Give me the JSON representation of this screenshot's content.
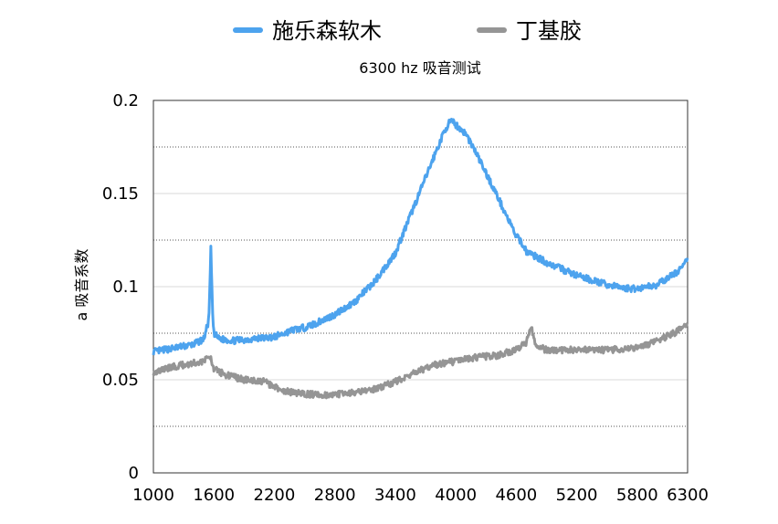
{
  "chart_data": {
    "type": "line",
    "title": "6300 hz 吸音测试",
    "xlabel": "",
    "ylabel": "a 吸音系数",
    "xlim": [
      1000,
      6300
    ],
    "ylim": [
      0,
      0.2
    ],
    "x_ticks": [
      "1000",
      "1600",
      "2200",
      "2800",
      "3400",
      "4000",
      "4600",
      "5200",
      "5800",
      "6300"
    ],
    "y_ticks": [
      "0",
      "0.05",
      "0.1",
      "0.15",
      "0.2"
    ],
    "grid": {
      "major_solid": [
        0.05,
        0.1,
        0.15
      ],
      "minor_dotted": [
        0.025,
        0.075,
        0.125,
        0.175
      ]
    },
    "legend_position": "top",
    "series": [
      {
        "name": "施乐森软木",
        "color": "#4da3ee",
        "x": [
          1000,
          1200,
          1400,
          1500,
          1550,
          1560,
          1570,
          1580,
          1590,
          1600,
          1650,
          1800,
          2000,
          2200,
          2300,
          2400,
          2500,
          2600,
          2800,
          3000,
          3200,
          3400,
          3600,
          3800,
          3900,
          3950,
          4000,
          4100,
          4200,
          4400,
          4600,
          4650,
          4700,
          4900,
          5200,
          5500,
          5700,
          5800,
          6000,
          6200,
          6300
        ],
        "y": [
          0.065,
          0.067,
          0.069,
          0.072,
          0.082,
          0.1,
          0.12,
          0.1,
          0.082,
          0.075,
          0.072,
          0.071,
          0.072,
          0.073,
          0.075,
          0.077,
          0.078,
          0.08,
          0.085,
          0.092,
          0.103,
          0.118,
          0.145,
          0.172,
          0.185,
          0.189,
          0.187,
          0.182,
          0.172,
          0.15,
          0.127,
          0.124,
          0.119,
          0.113,
          0.106,
          0.101,
          0.099,
          0.099,
          0.101,
          0.108,
          0.114
        ]
      },
      {
        "name": "丁基胶",
        "color": "#959595",
        "x": [
          1000,
          1200,
          1400,
          1500,
          1560,
          1570,
          1580,
          1600,
          1700,
          1900,
          2100,
          2200,
          2300,
          2400,
          2600,
          2800,
          3000,
          3200,
          3400,
          3600,
          3800,
          4000,
          4200,
          4400,
          4600,
          4700,
          4750,
          4800,
          4900,
          5200,
          5500,
          5800,
          6000,
          6200,
          6300
        ],
        "y": [
          0.054,
          0.057,
          0.059,
          0.06,
          0.062,
          0.064,
          0.058,
          0.056,
          0.053,
          0.05,
          0.049,
          0.046,
          0.044,
          0.043,
          0.042,
          0.042,
          0.043,
          0.045,
          0.049,
          0.054,
          0.058,
          0.06,
          0.062,
          0.063,
          0.066,
          0.07,
          0.078,
          0.068,
          0.066,
          0.066,
          0.066,
          0.067,
          0.071,
          0.076,
          0.081
        ]
      }
    ]
  }
}
